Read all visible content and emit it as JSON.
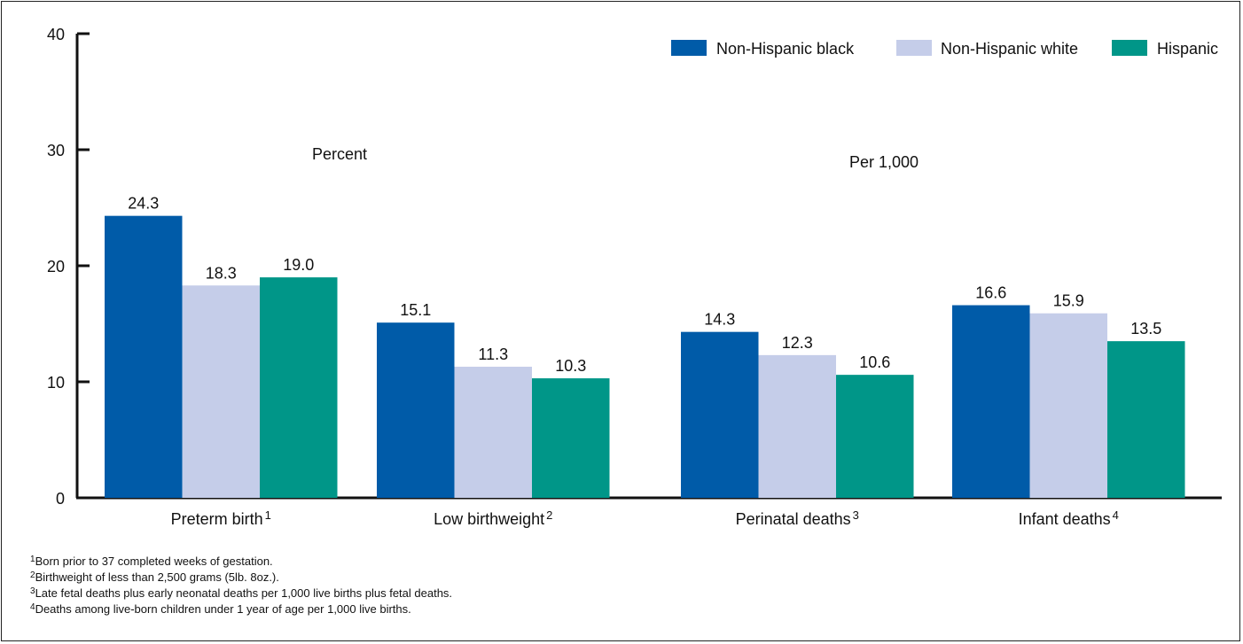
{
  "chart_data": {
    "type": "bar",
    "categories": [
      "Preterm birth",
      "Low birthweight",
      "Perinatal deaths",
      "Infant deaths"
    ],
    "category_footnote_refs": [
      "1",
      "2",
      "3",
      "4"
    ],
    "series": [
      {
        "name": "Non-Hispanic black",
        "color": "#005ba8",
        "values": [
          24.3,
          15.1,
          14.3,
          16.6
        ]
      },
      {
        "name": "Non-Hispanic white",
        "color": "#c5cde9",
        "values": [
          18.3,
          11.3,
          12.3,
          15.9
        ]
      },
      {
        "name": "Hispanic",
        "color": "#009688",
        "values": [
          19.0,
          10.3,
          10.6,
          13.5
        ]
      }
    ],
    "data_labels": [
      [
        "24.3",
        "15.1",
        "14.3",
        "16.6"
      ],
      [
        "18.3",
        "11.3",
        "12.3",
        "15.9"
      ],
      [
        "19.0",
        "10.3",
        "10.6",
        "13.5"
      ]
    ],
    "ylim": [
      0,
      40
    ],
    "yticks": [
      0,
      10,
      20,
      30,
      40
    ],
    "annotations": [
      "Percent",
      "Per 1,000"
    ],
    "legend_position": "top-right",
    "grid": false
  },
  "footnotes": [
    {
      "num": "1",
      "text": "Born prior to 37 completed weeks of gestation."
    },
    {
      "num": "2",
      "text": "Birthweight of less than 2,500 grams (5lb. 8oz.)."
    },
    {
      "num": "3",
      "text": "Late fetal deaths plus early neonatal deaths per 1,000 live births plus fetal deaths."
    },
    {
      "num": "4",
      "text": "Deaths among live-born children under 1 year of age per 1,000 live births."
    }
  ]
}
